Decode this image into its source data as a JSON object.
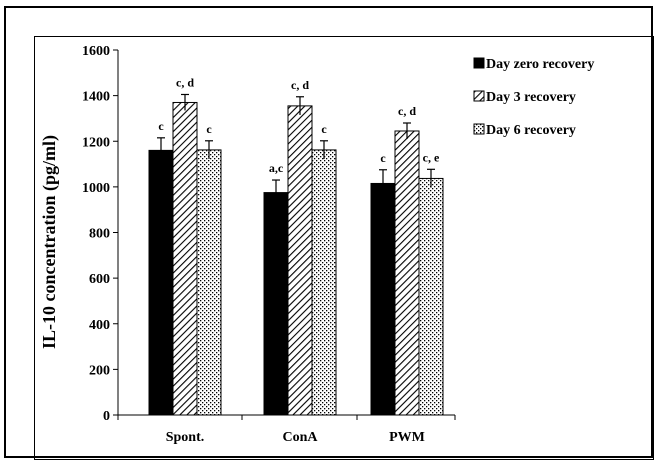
{
  "chart_data": {
    "type": "bar",
    "title": "",
    "xlabel": "",
    "ylabel": "IL-10 concentration (pg/ml)",
    "ylim": [
      0,
      1600
    ],
    "yticks": [
      0,
      200,
      400,
      600,
      800,
      1000,
      1200,
      1400,
      1600
    ],
    "categories": [
      "Spont.",
      "ConA",
      "PWM"
    ],
    "series": [
      {
        "name": "Day zero recovery",
        "values": [
          1160,
          975,
          1015
        ],
        "errors": [
          55,
          55,
          60
        ],
        "labels": [
          "c",
          "a,c",
          "c"
        ],
        "fill": "solid",
        "color": "#000000"
      },
      {
        "name": "Day 3 recovery",
        "values": [
          1370,
          1355,
          1245
        ],
        "errors": [
          35,
          40,
          35
        ],
        "labels": [
          "c, d",
          "c, d",
          "c, d"
        ],
        "fill": "hatch",
        "color": "#000000"
      },
      {
        "name": "Day 6 recovery",
        "values": [
          1162,
          1162,
          1037
        ],
        "errors": [
          40,
          40,
          40
        ],
        "labels": [
          "c",
          "c",
          "c, e"
        ],
        "fill": "dots",
        "color": "#000000"
      }
    ],
    "grid": false,
    "legend_position": "top-right"
  }
}
